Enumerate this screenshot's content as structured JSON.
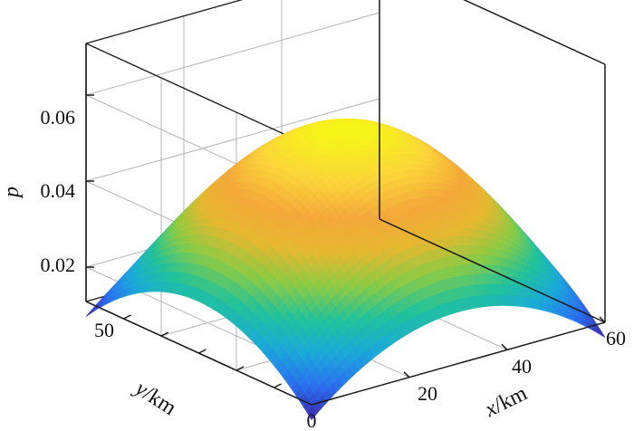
{
  "chart_data": {
    "type": "surface",
    "title": "",
    "xlabel_var": "x",
    "xlabel_unit": "/km",
    "ylabel_var": "y",
    "ylabel_unit": "/km",
    "zlabel": "p",
    "x_range": [
      0,
      60
    ],
    "y_range": [
      0,
      60
    ],
    "zlim": [
      0.012,
      0.072
    ],
    "x_ticks": [
      "20",
      "40",
      "60"
    ],
    "y_ticks": [
      "50"
    ],
    "origin_label": "0",
    "z_ticks": [
      "0.02",
      "0.04",
      "0.06"
    ],
    "grid": true,
    "colormap": "parula",
    "surface": {
      "model": "tensor-product parabolic dome",
      "z_center": 0.055,
      "z_edge_mid": 0.024,
      "z_corner": 0.0085,
      "corner_visible_value": 0.009
    }
  },
  "colors": {
    "background": "#ffffff",
    "axes_line": "#1a1a1a",
    "grid_line": "#b4b4b4",
    "colormap_stops": [
      "#3e26a8",
      "#2b6ff1",
      "#1ba9d9",
      "#21c29b",
      "#8bcb45",
      "#e5b82f",
      "#f4a83a",
      "#fbd53a",
      "#f6f618"
    ]
  }
}
